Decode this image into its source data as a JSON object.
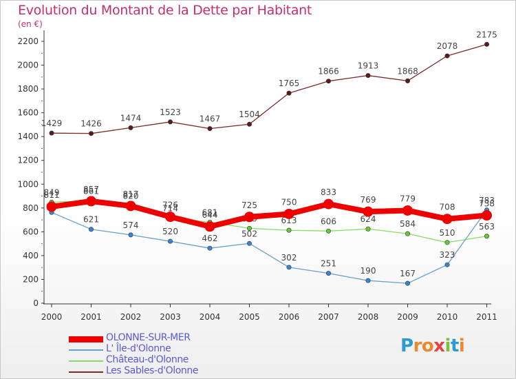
{
  "header": {
    "title": "Evolution du Montant de la Dette par Habitant",
    "subtitle": "(en €)"
  },
  "logo": {
    "letters": [
      "P",
      "r",
      "o",
      "x",
      "i",
      "t",
      "i"
    ],
    "colors": [
      "#2d9ad6",
      "#e8892b",
      "#e8892b",
      "#e04545",
      "#7fbf3f",
      "#2d9ad6",
      "#e8892b"
    ]
  },
  "chart_data": {
    "type": "line",
    "title": "Evolution du Montant de la Dette par Habitant",
    "ylabel": "(en €)",
    "xlabel": "",
    "x": [
      "2000",
      "2001",
      "2002",
      "2003",
      "2004",
      "2005",
      "2006",
      "2007",
      "2008",
      "2009",
      "2010",
      "2011"
    ],
    "ylim": [
      0,
      2200
    ],
    "yticks": [
      "0",
      "200",
      "400",
      "600",
      "800",
      "1000",
      "1200",
      "1400",
      "1600",
      "1800",
      "2000",
      "2200"
    ],
    "grid": false,
    "legend_position": "bottom-left",
    "series": [
      {
        "name": "Les Sables-d'Olonne",
        "color": "#7a2a2a",
        "dot_color": "#5a1a1a",
        "width": 1.3,
        "values": [
          1429,
          1426,
          1474,
          1523,
          1467,
          1504,
          1765,
          1866,
          1913,
          1868,
          2078,
          2175
        ],
        "labels": [
          "1429",
          "1426",
          "1474",
          "1523",
          "1467",
          "1504",
          "1765",
          "1866",
          "1913",
          "1868",
          "2078",
          "2175"
        ]
      },
      {
        "name": "Château-d'Olonne",
        "color": "#88dd66",
        "dot_color": "#66cc33",
        "width": 1.3,
        "values": [
          849,
          861,
          820,
          714,
          681,
          629,
          613,
          606,
          624,
          584,
          510,
          563
        ],
        "labels": [
          "849",
          "861",
          "820",
          "714",
          "681",
          "629",
          "613",
          "606",
          "624",
          "584",
          "510",
          "563"
        ]
      },
      {
        "name": "L' Île-d'Olonne",
        "color": "#6a9fd0",
        "dot_color": "#3a85d0",
        "width": 1.3,
        "values": [
          763,
          621,
          574,
          520,
          462,
          502,
          302,
          251,
          190,
          167,
          323,
          783
        ],
        "labels": [
          "",
          "621",
          "574",
          "520",
          "462",
          "502",
          "302",
          "251",
          "190",
          "167",
          "323",
          "783"
        ]
      },
      {
        "name": "OLONNE-SUR-MER",
        "color": "#ee0000",
        "dot_color": "#ee0000",
        "width": 8,
        "values": [
          811,
          857,
          817,
          726,
          644,
          725,
          750,
          833,
          769,
          779,
          708,
          738
        ],
        "labels": [
          "811",
          "857",
          "817",
          "726",
          "644",
          "725",
          "750",
          "833",
          "769",
          "779",
          "708",
          "738"
        ]
      }
    ],
    "legend": [
      "OLONNE-SUR-MER",
      "L' Île-d'Olonne",
      "Château-d'Olonne",
      "Les Sables-d'Olonne"
    ]
  }
}
